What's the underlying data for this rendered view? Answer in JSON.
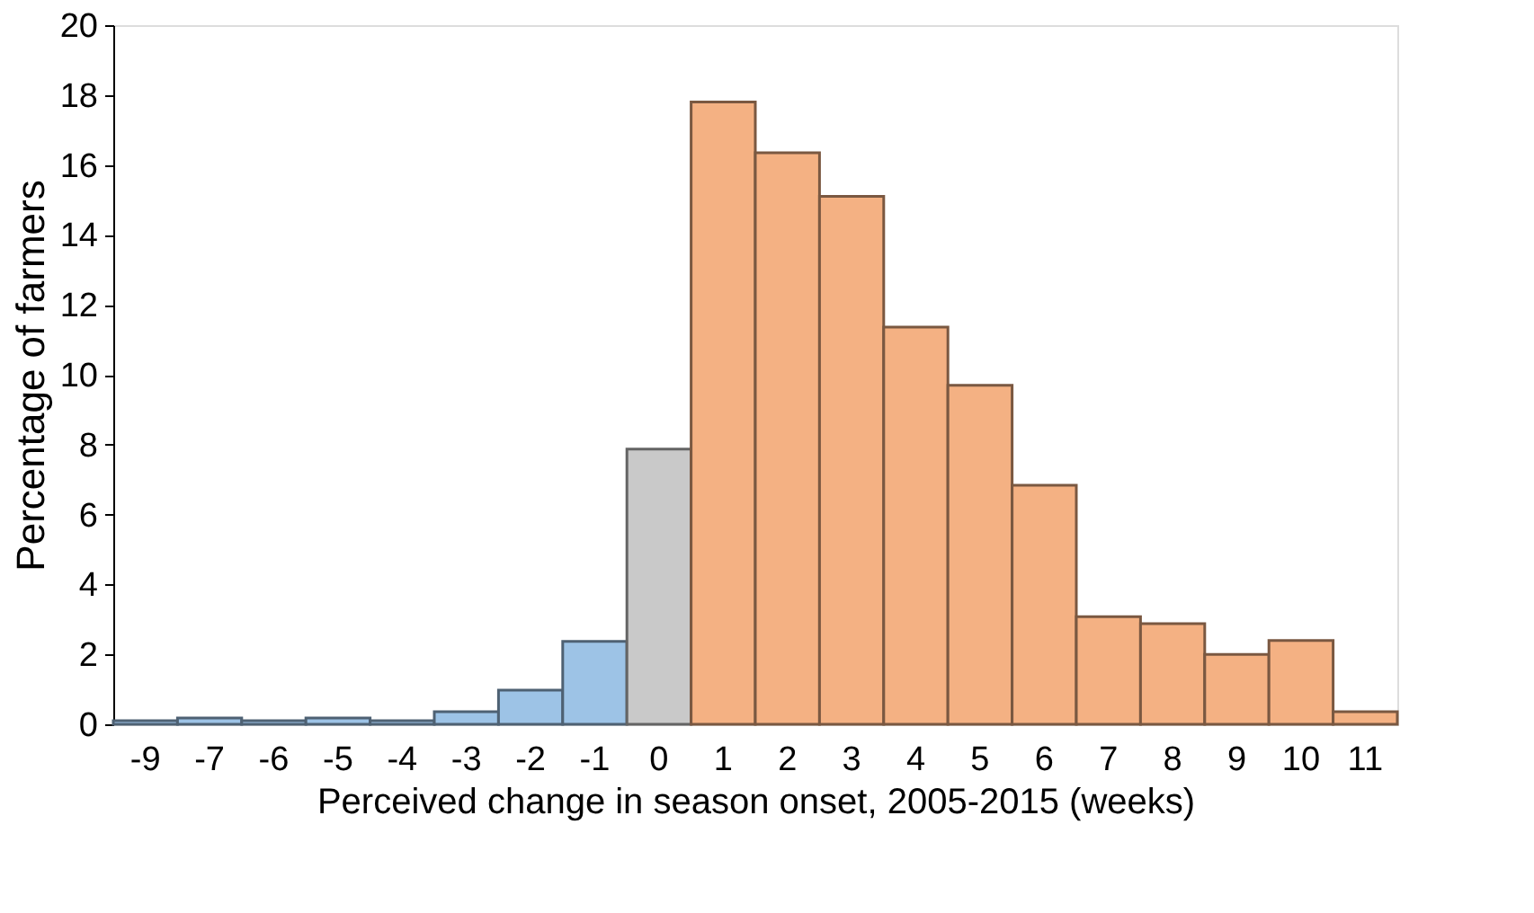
{
  "chart_data": {
    "type": "bar",
    "xlabel": "Perceived change in season onset, 2005-2015 (weeks)",
    "ylabel": "Percentage of farmers",
    "categories": [
      "-9",
      "-7",
      "-6",
      "-5",
      "-4",
      "-3",
      "-2",
      "-1",
      "0",
      "1",
      "2",
      "3",
      "4",
      "5",
      "6",
      "7",
      "8",
      "9",
      "10",
      "11"
    ],
    "values": [
      0.1,
      0.18,
      0.1,
      0.18,
      0.1,
      0.36,
      0.98,
      2.37,
      7.87,
      17.8,
      16.35,
      15.1,
      11.36,
      9.7,
      6.84,
      3.08,
      2.88,
      2.0,
      2.4,
      0.36
    ],
    "colors": [
      "#9dc3e6",
      "#9dc3e6",
      "#9dc3e6",
      "#9dc3e6",
      "#9dc3e6",
      "#9dc3e6",
      "#9dc3e6",
      "#9dc3e6",
      "#c9c9c9",
      "#f4b183",
      "#f4b183",
      "#f4b183",
      "#f4b183",
      "#f4b183",
      "#f4b183",
      "#f4b183",
      "#f4b183",
      "#f4b183",
      "#f4b183",
      "#f4b183"
    ],
    "ylim": [
      0,
      20
    ],
    "yticks": [
      0,
      2,
      4,
      6,
      8,
      10,
      12,
      14,
      16,
      18,
      20
    ],
    "grid": false
  }
}
